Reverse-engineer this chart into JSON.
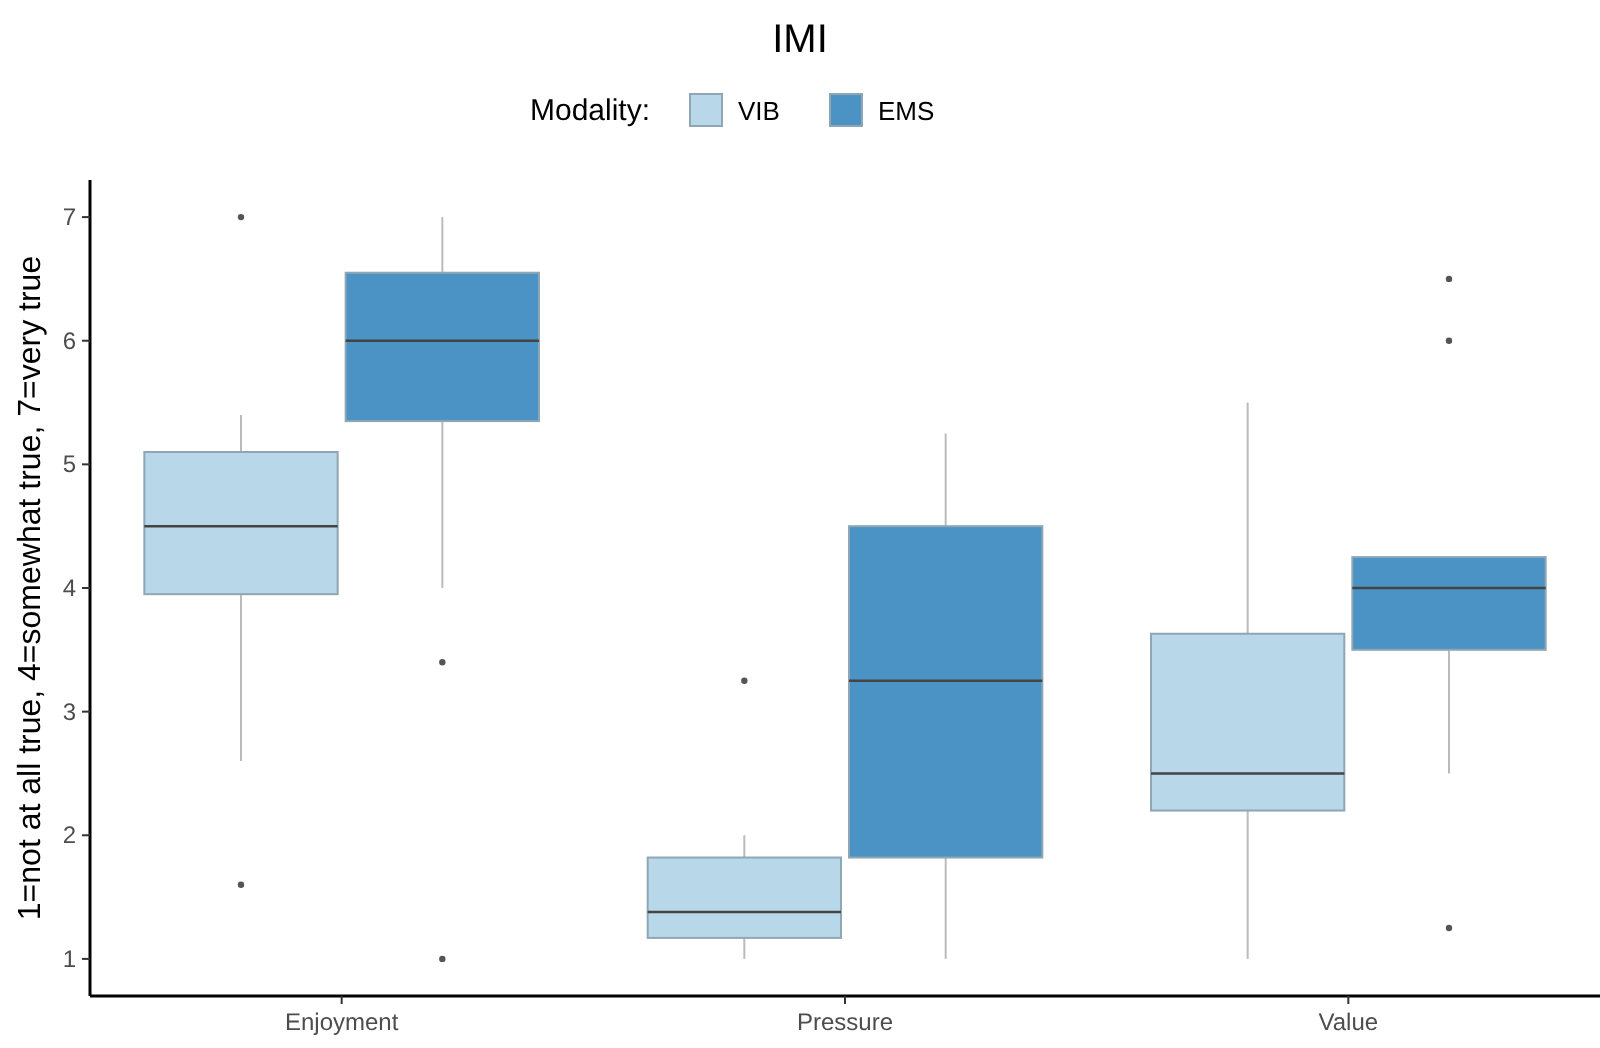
{
  "chart_data": {
    "type": "box",
    "title": "IMI",
    "ylabel": "1=not at all true, 4=somewhat true, 7=very true",
    "legend_title": "Modality:",
    "legend": "top",
    "grid": false,
    "categories": [
      "Enjoyment",
      "Pressure",
      "Value"
    ],
    "ylim": [
      0.7,
      7.3
    ],
    "yticks": [
      1,
      2,
      3,
      4,
      5,
      6,
      7
    ],
    "series": [
      {
        "name": "VIB",
        "color": "#b8d7e8",
        "boxes": [
          {
            "low": 2.6,
            "q1": 3.95,
            "median": 4.5,
            "q3": 5.1,
            "high": 5.4,
            "outliers": [
              7,
              1.6
            ]
          },
          {
            "low": 1,
            "q1": 1.17,
            "median": 1.38,
            "q3": 1.82,
            "high": 2,
            "outliers": [
              3.25
            ]
          },
          {
            "low": 1,
            "q1": 2.2,
            "median": 2.5,
            "q3": 3.63,
            "high": 5.5
          }
        ]
      },
      {
        "name": "EMS",
        "color": "#4a93c4",
        "boxes": [
          {
            "low": 4,
            "q1": 5.35,
            "median": 6,
            "q3": 6.55,
            "high": 7,
            "outliers": [
              3.4,
              1
            ]
          },
          {
            "low": 1,
            "q1": 1.82,
            "median": 3.25,
            "q3": 4.5,
            "high": 5.25
          },
          {
            "low": 2.5,
            "q1": 3.5,
            "median": 4,
            "q3": 4.25,
            "high": 4.25,
            "outliers": [
              6.5,
              6,
              1.25
            ]
          }
        ]
      }
    ]
  }
}
